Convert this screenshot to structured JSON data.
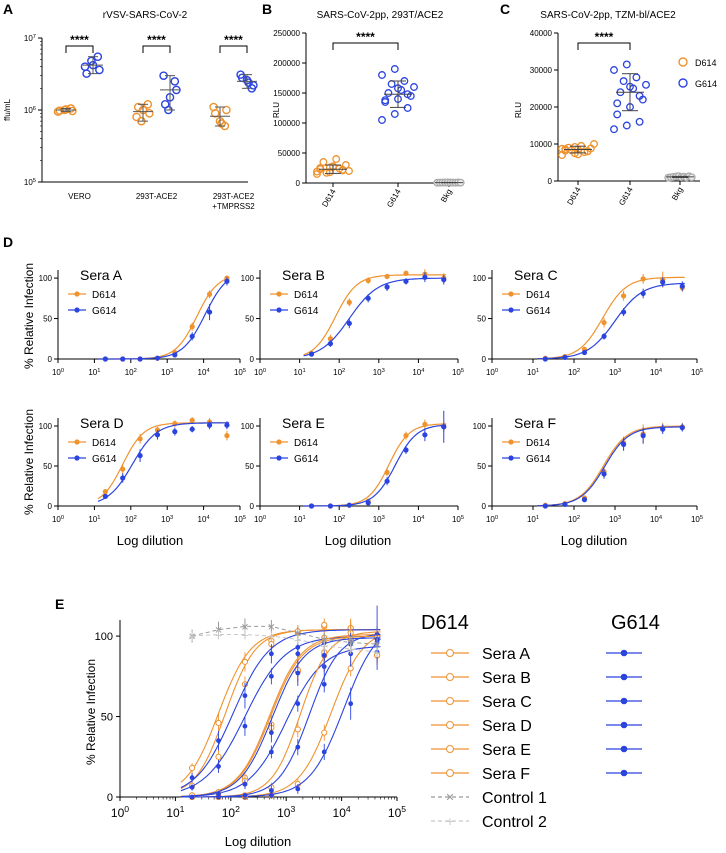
{
  "colors": {
    "d614": "#f0922e",
    "g614": "#2b44e0",
    "control": "#aaaaaa"
  },
  "panels": {
    "a": "A",
    "b": "B",
    "c": "C",
    "d": "D",
    "e": "E"
  },
  "chart_data": [
    {
      "id": "A",
      "type": "scatter",
      "title": "rVSV-SARS-CoV-2",
      "ylabel": "ffu/mL",
      "yscale": "log",
      "ylim": [
        100000,
        10000000
      ],
      "yticks": [
        100000,
        1000000,
        10000000
      ],
      "ytick_labels": [
        {
          "b": "10",
          "e": "5"
        },
        {
          "b": "10",
          "e": "6"
        },
        {
          "b": "10",
          "e": "7"
        }
      ],
      "groups": [
        {
          "label": "VERO",
          "d614": [
            950000,
            1000000,
            1050000,
            980000,
            1020000,
            970000
          ],
          "d614_mean": 1000000,
          "g614": [
            4000000,
            4800000,
            5500000,
            3200000,
            4200000,
            3600000
          ],
          "g614_mean": 4200000,
          "significance": "****"
        },
        {
          "label": "293T-ACE2",
          "d614": [
            700000,
            1200000,
            800000,
            1000000,
            900000,
            1100000
          ],
          "d614_mean": 950000,
          "g614": [
            1000000,
            2500000,
            3000000,
            1500000,
            1900000,
            1200000
          ],
          "g614_mean": 1900000,
          "significance": "****"
        },
        {
          "label": "293T-ACE2 +TMPRSS2",
          "label_lines": [
            "293T-ACE2",
            "+TMPRSS2"
          ],
          "d614": [
            600000,
            1100000,
            700000,
            1000000,
            900000,
            650000
          ],
          "d614_mean": 820000,
          "g614": [
            2000000,
            3100000,
            2600000,
            2200000,
            2800000,
            2400000
          ],
          "g614_mean": 2500000,
          "significance": "****"
        }
      ]
    },
    {
      "id": "B",
      "type": "scatter",
      "title": "SARS-CoV-2pp, 293T/ACE2",
      "ylabel": "RLU",
      "ylim": [
        0,
        250000
      ],
      "yticks": [
        0,
        50000,
        100000,
        150000,
        200000,
        250000
      ],
      "categories": [
        "D614",
        "G614",
        "Bkg"
      ],
      "values": {
        "D614": [
          15000,
          18000,
          22000,
          25000,
          28000,
          30000,
          35000,
          40000,
          20000,
          17000,
          24000,
          19000,
          26000,
          21000,
          23000,
          27000
        ],
        "G614": [
          105000,
          115000,
          125000,
          135000,
          140000,
          145000,
          150000,
          155000,
          160000,
          165000,
          170000,
          180000,
          190000,
          148000,
          138000,
          158000
        ],
        "Bkg": [
          500,
          600,
          700,
          800,
          900,
          650,
          750,
          550,
          850,
          600
        ]
      },
      "means": {
        "D614": 23000,
        "G614": 148000,
        "Bkg": 700
      },
      "sd": {
        "D614": 7000,
        "G614": 22000,
        "Bkg": 200
      },
      "significance": "****"
    },
    {
      "id": "C",
      "type": "scatter",
      "title": "SARS-CoV-2pp, TZM-bl/ACE2",
      "ylabel": "RLU",
      "ylim": [
        0,
        40000
      ],
      "yticks": [
        0,
        10000,
        20000,
        30000,
        40000
      ],
      "categories": [
        "D614",
        "G614",
        "Bkg"
      ],
      "legend": [
        "D614",
        "G614"
      ],
      "values": {
        "D614": [
          7000,
          7500,
          8000,
          8200,
          8500,
          8800,
          9000,
          9500,
          10000,
          8300,
          7800,
          8700,
          9200,
          8100,
          8600,
          7200
        ],
        "G614": [
          14000,
          15000,
          16000,
          18000,
          20000,
          22000,
          24000,
          25000,
          26000,
          27000,
          28000,
          30000,
          31500,
          23000,
          21000,
          25500
        ],
        "Bkg": [
          900,
          1000,
          1100,
          1200,
          1300,
          1050,
          1150,
          950,
          1250,
          1000
        ]
      },
      "means": {
        "D614": 8500,
        "G614": 24000,
        "Bkg": 1100
      },
      "sd": {
        "D614": 900,
        "G614": 5000,
        "Bkg": 150
      },
      "significance": "****"
    },
    {
      "id": "D",
      "type": "line",
      "xscale": "log",
      "ylabel": "% Relative Infection",
      "xlabel": "Log dilution",
      "x": [
        20,
        60,
        180,
        540,
        1620,
        4860,
        14580,
        43740
      ],
      "xlim": [
        1,
        100000
      ],
      "ylim": [
        0,
        110
      ],
      "xticks": [
        1,
        10,
        100,
        1000,
        10000,
        100000
      ],
      "xtick_labels": [
        {
          "b": "10",
          "e": "0"
        },
        {
          "b": "10",
          "e": "1"
        },
        {
          "b": "10",
          "e": "2"
        },
        {
          "b": "10",
          "e": "3"
        },
        {
          "b": "10",
          "e": "4"
        },
        {
          "b": "10",
          "e": "5"
        }
      ],
      "yticks": [
        0,
        50,
        100
      ],
      "subplots": [
        {
          "name": "Sera A",
          "series": [
            {
              "name": "D614",
              "values": [
                0,
                0,
                0,
                1,
                8,
                40,
                80,
                100
              ],
              "ic50": 6500,
              "hill": 1.5,
              "top": 105,
              "err": [
                1,
                1,
                1,
                2,
                3,
                5,
                5,
                3
              ]
            },
            {
              "name": "G614",
              "values": [
                0,
                0,
                0,
                1,
                5,
                28,
                58,
                96
              ],
              "ic50": 11000,
              "hill": 1.4,
              "top": 110,
              "err": [
                1,
                1,
                1,
                2,
                3,
                5,
                10,
                5
              ]
            }
          ]
        },
        {
          "name": "Sera B",
          "series": [
            {
              "name": "D614",
              "values": [
                7,
                25,
                70,
                97,
                102,
                106,
                105,
                100
              ],
              "ic50": 80,
              "hill": 1.6,
              "top": 104,
              "err": [
                2,
                5,
                5,
                4,
                3,
                3,
                6,
                6
              ]
            },
            {
              "name": "G614",
              "values": [
                6,
                19,
                44,
                75,
                89,
                96,
                101,
                98
              ],
              "ic50": 180,
              "hill": 1.2,
              "top": 100,
              "err": [
                2,
                4,
                6,
                5,
                5,
                4,
                6,
                6
              ]
            }
          ]
        },
        {
          "name": "Sera C",
          "series": [
            {
              "name": "D614",
              "values": [
                1,
                3,
                12,
                45,
                78,
                99,
                98,
                88
              ],
              "ic50": 500,
              "hill": 1.5,
              "top": 101,
              "err": [
                1,
                2,
                3,
                6,
                6,
                6,
                10,
                5
              ]
            },
            {
              "name": "G614",
              "values": [
                0,
                2,
                8,
                28,
                58,
                81,
                95,
                90
              ],
              "ic50": 1000,
              "hill": 1.3,
              "top": 94,
              "err": [
                1,
                2,
                3,
                4,
                5,
                6,
                6,
                6
              ]
            }
          ]
        },
        {
          "name": "Sera D",
          "series": [
            {
              "name": "D614",
              "values": [
                18,
                46,
                84,
                95,
                103,
                107,
                105,
                88
              ],
              "ic50": 60,
              "hill": 1.5,
              "top": 104,
              "err": [
                3,
                6,
                6,
                4,
                4,
                4,
                5,
                6
              ]
            },
            {
              "name": "G614",
              "values": [
                12,
                35,
                63,
                89,
                93,
                96,
                101,
                101
              ],
              "ic50": 110,
              "hill": 1.3,
              "top": 104,
              "err": [
                3,
                6,
                8,
                6,
                5,
                4,
                5,
                5
              ]
            }
          ]
        },
        {
          "name": "Sera E",
          "series": [
            {
              "name": "D614",
              "values": [
                0,
                0,
                1,
                6,
                42,
                88,
                102,
                99
              ],
              "ic50": 1800,
              "hill": 1.7,
              "top": 103,
              "err": [
                1,
                1,
                1,
                3,
                5,
                5,
                6,
                6
              ]
            },
            {
              "name": "G614",
              "values": [
                0,
                0,
                1,
                4,
                31,
                70,
                89,
                99
              ],
              "ic50": 2600,
              "hill": 1.6,
              "top": 102,
              "err": [
                1,
                1,
                1,
                3,
                5,
                5,
                8,
                20
              ]
            }
          ]
        },
        {
          "name": "Sera F",
          "series": [
            {
              "name": "D614",
              "values": [
                1,
                3,
                10,
                43,
                79,
                90,
                98,
                99
              ],
              "ic50": 520,
              "hill": 1.5,
              "top": 100,
              "err": [
                1,
                2,
                3,
                6,
                8,
                12,
                6,
                5
              ]
            },
            {
              "name": "G614",
              "values": [
                0,
                2,
                8,
                40,
                77,
                88,
                96,
                98
              ],
              "ic50": 560,
              "hill": 1.5,
              "top": 99,
              "err": [
                1,
                2,
                3,
                6,
                8,
                10,
                6,
                5
              ]
            }
          ]
        }
      ]
    },
    {
      "id": "E",
      "type": "line",
      "xscale": "log",
      "ylabel": "% Relative Infection",
      "xlabel": "Log dilution",
      "xlim": [
        1,
        100000
      ],
      "ylim": [
        0,
        110
      ],
      "yticks": [
        0,
        50,
        100
      ],
      "x": [
        20,
        60,
        180,
        540,
        1620,
        4860,
        14580,
        43740
      ],
      "xtick_labels": [
        {
          "b": "10",
          "e": "0"
        },
        {
          "b": "10",
          "e": "1"
        },
        {
          "b": "10",
          "e": "2"
        },
        {
          "b": "10",
          "e": "3"
        },
        {
          "b": "10",
          "e": "4"
        },
        {
          "b": "10",
          "e": "5"
        }
      ],
      "legend_titles": {
        "d614": "D614",
        "g614": "G614"
      },
      "legend_items": [
        "Sera A",
        "Sera B",
        "Sera C",
        "Sera D",
        "Sera E",
        "Sera F",
        "Control 1",
        "Control 2"
      ],
      "controls": [
        {
          "name": "Control 1",
          "values": [
            100,
            104,
            106,
            106,
            102,
            98,
            96,
            95
          ],
          "err": [
            4,
            5,
            5,
            4,
            4,
            4,
            4,
            4
          ]
        },
        {
          "name": "Control 2",
          "values": [
            100,
            101,
            101,
            100,
            98,
            94,
            92,
            90
          ],
          "err": [
            3,
            3,
            3,
            3,
            3,
            3,
            3,
            3
          ]
        }
      ]
    }
  ]
}
